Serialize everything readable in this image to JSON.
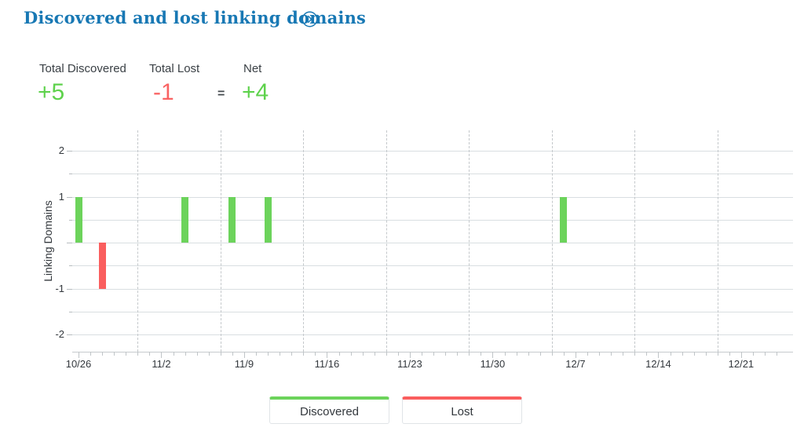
{
  "header": {
    "title": "Discovered and lost linking domains",
    "link_icon": "circled-chevron-right",
    "title_color": "#1878b4"
  },
  "summary": {
    "discovered": {
      "label": "Total Discovered",
      "value": "+5",
      "color": "#5ed24c"
    },
    "lost": {
      "label": "Total Lost",
      "value": "-1",
      "color": "#f96363"
    },
    "equals": "=",
    "net": {
      "label": "Net",
      "value": "+4",
      "color": "#5ed24c"
    }
  },
  "chart_data": {
    "type": "bar",
    "title": "Discovered and lost linking domains",
    "xlabel": "",
    "ylabel": "Linking Domains",
    "ylim": [
      -2.4,
      2.4
    ],
    "grid": true,
    "legend_position": "bottom",
    "y_gridlines": [
      2,
      1.5,
      1,
      0.5,
      0,
      -0.5,
      -1,
      -1.5,
      -2
    ],
    "y_tick_labels": [
      2,
      1,
      -1,
      -2
    ],
    "x_start_date": "10/26",
    "days_total": 60,
    "x_label_every_days": 7,
    "x_tick_labels": [
      "10/26",
      "11/2",
      "11/9",
      "11/16",
      "11/23",
      "11/30",
      "12/7",
      "12/14",
      "12/21"
    ],
    "dashed_gridline_days": [
      5,
      12,
      19,
      26,
      33,
      40,
      47,
      54
    ],
    "series": [
      {
        "name": "Discovered",
        "color": "#6cd35b",
        "points": [
          {
            "day": 0,
            "date": "10/26",
            "value": 1
          },
          {
            "day": 9,
            "date": "11/4",
            "value": 1
          },
          {
            "day": 13,
            "date": "11/8",
            "value": 1
          },
          {
            "day": 16,
            "date": "11/11",
            "value": 1
          },
          {
            "day": 41,
            "date": "12/6",
            "value": 1
          }
        ]
      },
      {
        "name": "Lost",
        "color": "#fa5e5e",
        "points": [
          {
            "day": 2,
            "date": "10/28",
            "value": -1
          }
        ]
      }
    ]
  },
  "legend": [
    {
      "label": "Discovered",
      "color": "#6cd35b"
    },
    {
      "label": "Lost",
      "color": "#fa5e5e"
    }
  ]
}
